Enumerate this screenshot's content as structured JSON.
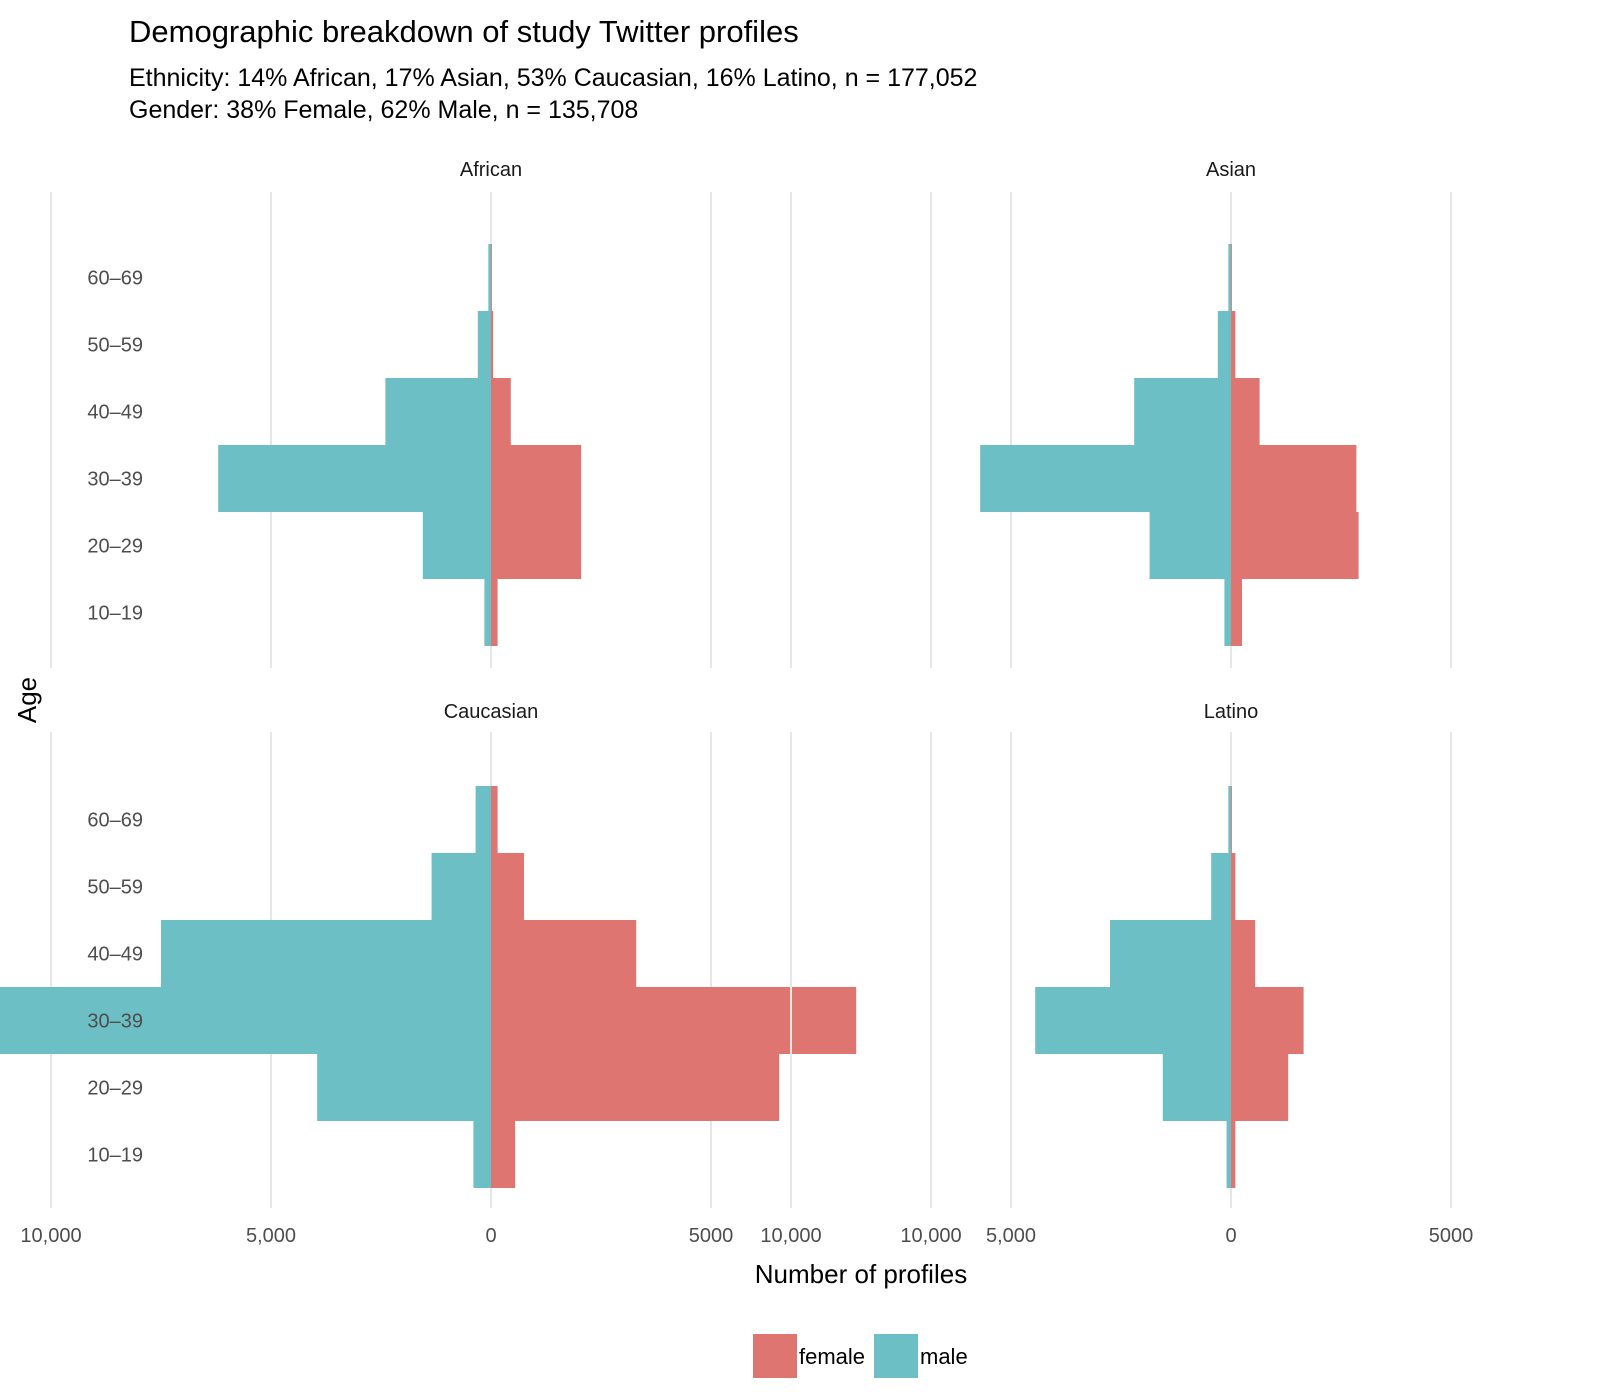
{
  "title": "Demographic breakdown of study Twitter profiles",
  "subtitle_lines": [
    "Ethnicity: 14% African, 17% Asian, 53% Caucasian, 16% Latino, n = 177,052",
    "Gender: 38% Female, 62% Male, n = 135,708"
  ],
  "colors": {
    "female": "#df7570",
    "male": "#6cbfc4",
    "grid": "#e6e6e6",
    "axis_text": "#4d4d4d"
  },
  "chart_data": {
    "type": "bar",
    "orientation": "horizontal",
    "layout": "population pyramid, faceted 2x2",
    "xlabel": "Number of profiles",
    "ylabel": "Age",
    "xlim": [
      -10000,
      10000
    ],
    "x_ticks": [
      -10000,
      -5000,
      0,
      5000,
      10000
    ],
    "x_tick_labels": [
      "10,000",
      "5,000",
      "0",
      "5000",
      "10,000"
    ],
    "grid": true,
    "legend_position": "bottom",
    "categories": [
      "10–19",
      "20–29",
      "30–39",
      "40–49",
      "50–59",
      "60–69"
    ],
    "series_names": [
      "female",
      "male"
    ],
    "facets": [
      {
        "name": "African",
        "series": [
          {
            "name": "female",
            "values": [
              150,
              2050,
              2050,
              450,
              50,
              20
            ]
          },
          {
            "name": "male",
            "values": [
              150,
              1550,
              6200,
              2400,
              300,
              60
            ]
          }
        ]
      },
      {
        "name": "Asian",
        "series": [
          {
            "name": "female",
            "values": [
              250,
              2900,
              2850,
              650,
              100,
              20
            ]
          },
          {
            "name": "male",
            "values": [
              150,
              1850,
              5700,
              2200,
              300,
              60
            ]
          }
        ]
      },
      {
        "name": "Caucasian",
        "series": [
          {
            "name": "female",
            "values": [
              550,
              6550,
              8300,
              3300,
              750,
              150
            ]
          },
          {
            "name": "male",
            "values": [
              400,
              3950,
              13100,
              7500,
              1350,
              350
            ]
          }
        ]
      },
      {
        "name": "Latino",
        "series": [
          {
            "name": "female",
            "values": [
              100,
              1300,
              1650,
              550,
              100,
              20
            ]
          },
          {
            "name": "male",
            "values": [
              100,
              1550,
              4450,
              2750,
              450,
              60
            ]
          }
        ]
      }
    ]
  }
}
